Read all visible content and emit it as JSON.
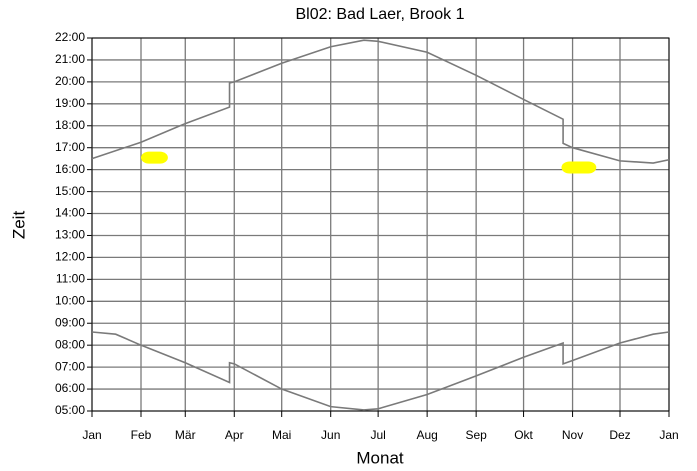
{
  "chart_data": {
    "type": "line",
    "title": "Bl02: Bad Laer, Brook 1",
    "xlabel": "Monat",
    "ylabel": "Zeit",
    "xlim": [
      0,
      365
    ],
    "xticks": [
      {
        "value": 0,
        "label": "Jan"
      },
      {
        "value": 31,
        "label": "Feb"
      },
      {
        "value": 59,
        "label": "Mär"
      },
      {
        "value": 90,
        "label": "Apr"
      },
      {
        "value": 120,
        "label": "Mai"
      },
      {
        "value": 151,
        "label": "Jun"
      },
      {
        "value": 181,
        "label": "Jul"
      },
      {
        "value": 212,
        "label": "Aug"
      },
      {
        "value": 243,
        "label": "Sep"
      },
      {
        "value": 273,
        "label": "Okt"
      },
      {
        "value": 304,
        "label": "Nov"
      },
      {
        "value": 334,
        "label": "Dez"
      },
      {
        "value": 365,
        "label": "Jan"
      }
    ],
    "ylim": [
      5,
      22
    ],
    "yticks": [
      {
        "value": 5,
        "label": "05:00"
      },
      {
        "value": 6,
        "label": "06:00"
      },
      {
        "value": 7,
        "label": "07:00"
      },
      {
        "value": 8,
        "label": "08:00"
      },
      {
        "value": 9,
        "label": "09:00"
      },
      {
        "value": 10,
        "label": "10:00"
      },
      {
        "value": 11,
        "label": "11:00"
      },
      {
        "value": 12,
        "label": "12:00"
      },
      {
        "value": 13,
        "label": "13:00"
      },
      {
        "value": 14,
        "label": "14:00"
      },
      {
        "value": 15,
        "label": "15:00"
      },
      {
        "value": 16,
        "label": "16:00"
      },
      {
        "value": 17,
        "label": "17:00"
      },
      {
        "value": 18,
        "label": "18:00"
      },
      {
        "value": 19,
        "label": "19:00"
      },
      {
        "value": 20,
        "label": "20:00"
      },
      {
        "value": 21,
        "label": "21:00"
      },
      {
        "value": 22,
        "label": "22:00"
      }
    ],
    "grid": true,
    "series": [
      {
        "color": "#7a7a7a",
        "x": [
          0,
          31,
          59,
          87,
          87,
          90,
          120,
          151,
          172,
          181,
          212,
          243,
          273,
          298,
          298,
          304,
          334,
          355,
          365
        ],
        "values": [
          16.5,
          17.25,
          18.1,
          18.85,
          19.95,
          20.0,
          20.85,
          21.6,
          21.9,
          21.85,
          21.35,
          20.3,
          19.2,
          18.3,
          17.2,
          17.0,
          16.4,
          16.3,
          16.45
        ]
      },
      {
        "color": "#7a7a7a",
        "x": [
          0,
          15,
          31,
          59,
          87,
          87,
          90,
          120,
          151,
          172,
          181,
          212,
          243,
          273,
          298,
          298,
          304,
          334,
          355,
          365
        ],
        "values": [
          8.6,
          8.5,
          8.0,
          7.2,
          6.3,
          7.2,
          7.15,
          6.0,
          5.2,
          5.05,
          5.1,
          5.75,
          6.6,
          7.45,
          8.1,
          7.15,
          7.3,
          8.1,
          8.5,
          8.6
        ]
      }
    ],
    "highlights": {
      "color": "#ffff00",
      "items": [
        {
          "x": [
            31,
            48
          ],
          "y": 16.55
        },
        {
          "x": [
            297,
            319
          ],
          "y": 16.1
        }
      ]
    }
  }
}
